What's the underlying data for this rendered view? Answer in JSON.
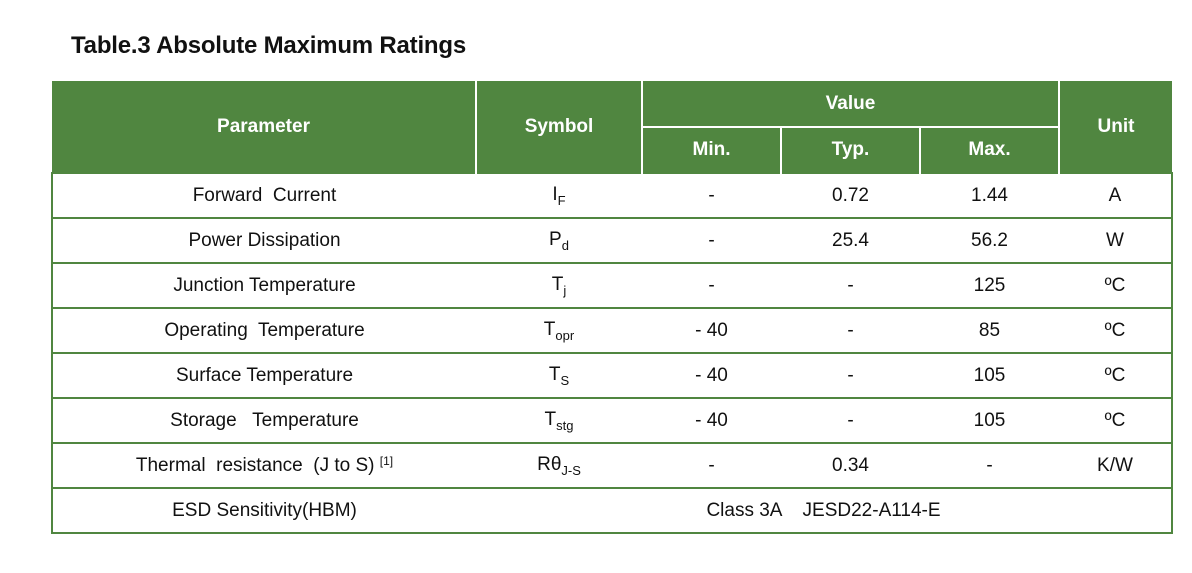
{
  "title": "Table.3 Absolute Maximum Ratings",
  "colors": {
    "header_bg": "#508640",
    "border": "#508640"
  },
  "header": {
    "parameter": "Parameter",
    "symbol": "Symbol",
    "value": "Value",
    "min": "Min.",
    "typ": "Typ.",
    "max": "Max.",
    "unit": "Unit"
  },
  "rows": [
    {
      "parameter": "Forward  Current",
      "sym": "I",
      "sub": "F",
      "min": "-",
      "typ": "0.72",
      "max": "1.44",
      "unit": "A"
    },
    {
      "parameter": "Power Dissipation",
      "sym": "P",
      "sub": "d",
      "min": "-",
      "typ": "25.4",
      "max": "56.2",
      "unit": "W"
    },
    {
      "parameter": "Junction Temperature",
      "sym": "T",
      "sub": "j",
      "min": "-",
      "typ": "-",
      "max": "125",
      "unit": "ºC"
    },
    {
      "parameter": "Operating  Temperature",
      "sym": "T",
      "sub": "opr",
      "min": "- 40",
      "typ": "-",
      "max": "85",
      "unit": "ºC"
    },
    {
      "parameter": "Surface Temperature",
      "sym": "T",
      "sub": "S",
      "min": "- 40",
      "typ": "-",
      "max": "105",
      "unit": "ºC"
    },
    {
      "parameter": "Storage   Temperature",
      "sym": "T",
      "sub": "stg",
      "min": "- 40",
      "typ": "-",
      "max": "105",
      "unit": "ºC"
    },
    {
      "parameter": "Thermal  resistance  (J to S)",
      "note": "[1]",
      "sym": "Rθ",
      "sub": "J-S",
      "min": "-",
      "typ": "0.34",
      "max": "-",
      "unit": "K/W"
    }
  ],
  "esd": {
    "parameter": "ESD Sensitivity(HBM)",
    "value": "Class 3A    JESD22-A114-E"
  }
}
